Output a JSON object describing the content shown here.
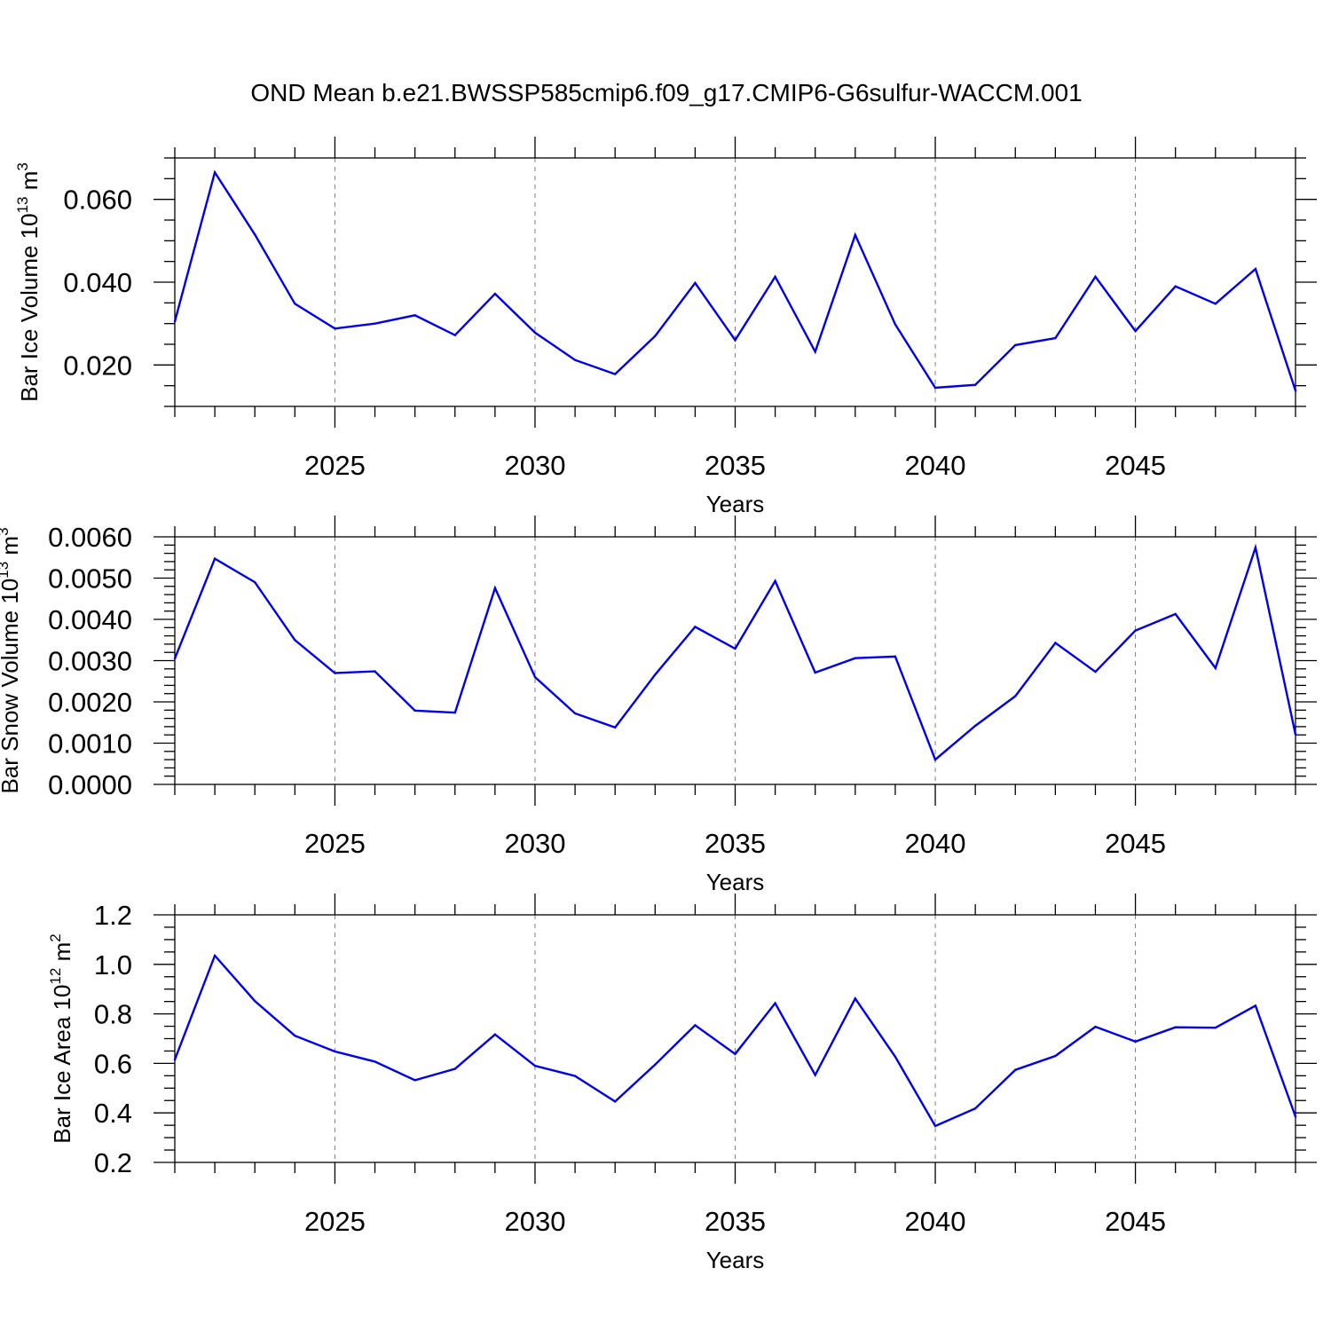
{
  "title": "OND Mean b.e21.BWSSP585cmip6.f09_g17.CMIP6-G6sulfur-WACCM.001",
  "colors": {
    "series": "#0000ee",
    "axis": "#000000",
    "grid": "#808080"
  },
  "chart_data": [
    {
      "type": "line",
      "xlabel": "Years",
      "ylabel_main": "Bar Ice Volume 10",
      "ylabel_exp": "13",
      "ylabel_unit": " m",
      "ylabel_unit_exp": "3",
      "xlim": [
        2021,
        2049
      ],
      "ylim": [
        0.01,
        0.07
      ],
      "xticks": [
        2025,
        2030,
        2035,
        2040,
        2045
      ],
      "xtick_labels": [
        "2025",
        "2030",
        "2035",
        "2040",
        "2045"
      ],
      "yticks": [
        0.02,
        0.04,
        0.06
      ],
      "ytick_labels": [
        "0.020",
        "0.040",
        "0.060"
      ],
      "yminor_step": 0.005,
      "grid_x": true,
      "x": [
        2021,
        2022,
        2023,
        2024,
        2025,
        2026,
        2027,
        2028,
        2029,
        2030,
        2031,
        2032,
        2033,
        2034,
        2035,
        2036,
        2037,
        2038,
        2039,
        2040,
        2041,
        2042,
        2043,
        2044,
        2045,
        2046,
        2047,
        2048,
        2049
      ],
      "y": [
        0.0305,
        0.0665,
        0.0515,
        0.0348,
        0.0288,
        0.03,
        0.032,
        0.0272,
        0.0372,
        0.0278,
        0.0212,
        0.0178,
        0.027,
        0.0398,
        0.026,
        0.0413,
        0.0232,
        0.0514,
        0.0298,
        0.0145,
        0.0152,
        0.0248,
        0.0265,
        0.0413,
        0.0282,
        0.039,
        0.0348,
        0.0432,
        0.0138
      ]
    },
    {
      "type": "line",
      "xlabel": "Years",
      "ylabel_main": "Bar Snow Volume 10",
      "ylabel_exp": "13",
      "ylabel_unit": " m",
      "ylabel_unit_exp": "3",
      "xlim": [
        2021,
        2049
      ],
      "ylim": [
        0.0,
        0.006
      ],
      "xticks": [
        2025,
        2030,
        2035,
        2040,
        2045
      ],
      "xtick_labels": [
        "2025",
        "2030",
        "2035",
        "2040",
        "2045"
      ],
      "yticks": [
        0.0,
        0.001,
        0.002,
        0.003,
        0.004,
        0.005,
        0.006
      ],
      "ytick_labels": [
        "0.0000",
        "0.0010",
        "0.0020",
        "0.0030",
        "0.0040",
        "0.0050",
        "0.0060"
      ],
      "yminor_step": 0.0002,
      "grid_x": true,
      "x": [
        2021,
        2022,
        2023,
        2024,
        2025,
        2026,
        2027,
        2028,
        2029,
        2030,
        2031,
        2032,
        2033,
        2034,
        2035,
        2036,
        2037,
        2038,
        2039,
        2040,
        2041,
        2042,
        2043,
        2044,
        2045,
        2046,
        2047,
        2048,
        2049
      ],
      "y": [
        0.00305,
        0.00547,
        0.0049,
        0.0035,
        0.0027,
        0.00274,
        0.00179,
        0.00174,
        0.00476,
        0.0026,
        0.00172,
        0.00138,
        0.00266,
        0.00382,
        0.00329,
        0.00493,
        0.00271,
        0.00306,
        0.0031,
        0.0006,
        0.00142,
        0.00214,
        0.00343,
        0.00273,
        0.00373,
        0.00413,
        0.00282,
        0.00574,
        0.00121
      ]
    },
    {
      "type": "line",
      "xlabel": "Years",
      "ylabel_main": "Bar Ice Area 10",
      "ylabel_exp": "12",
      "ylabel_unit": " m",
      "ylabel_unit_exp": "2",
      "xlim": [
        2021,
        2049
      ],
      "ylim": [
        0.2,
        1.2
      ],
      "xticks": [
        2025,
        2030,
        2035,
        2040,
        2045
      ],
      "xtick_labels": [
        "2025",
        "2030",
        "2035",
        "2040",
        "2045"
      ],
      "yticks": [
        0.2,
        0.4,
        0.6,
        0.8,
        1.0,
        1.2
      ],
      "ytick_labels": [
        "0.2",
        "0.4",
        "0.6",
        "0.8",
        "1.0",
        "1.2"
      ],
      "yminor_step": 0.05,
      "grid_x": true,
      "x": [
        2021,
        2022,
        2023,
        2024,
        2025,
        2026,
        2027,
        2028,
        2029,
        2030,
        2031,
        2032,
        2033,
        2034,
        2035,
        2036,
        2037,
        2038,
        2039,
        2040,
        2041,
        2042,
        2043,
        2044,
        2045,
        2046,
        2047,
        2048,
        2049
      ],
      "y": [
        0.615,
        1.035,
        0.852,
        0.712,
        0.648,
        0.607,
        0.532,
        0.578,
        0.717,
        0.59,
        0.549,
        0.446,
        0.595,
        0.754,
        0.638,
        0.843,
        0.553,
        0.862,
        0.627,
        0.347,
        0.418,
        0.574,
        0.63,
        0.748,
        0.688,
        0.746,
        0.744,
        0.833,
        0.385
      ]
    }
  ]
}
